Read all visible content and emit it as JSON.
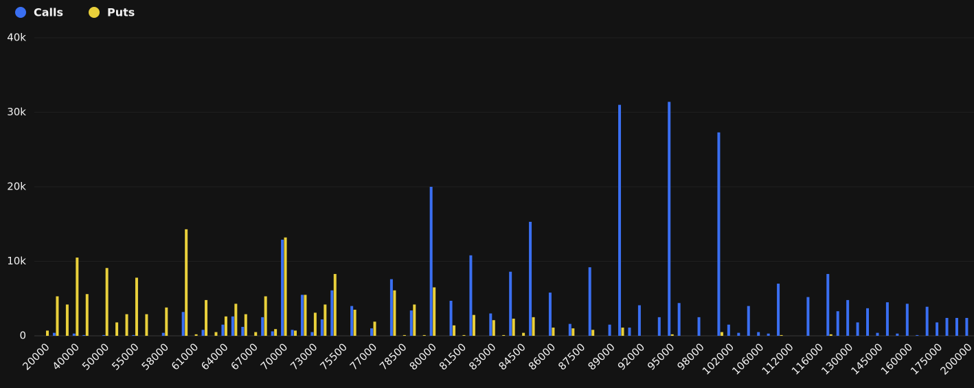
{
  "chart_data": {
    "type": "bar",
    "categories": [
      "20000",
      null,
      null,
      "40000",
      null,
      null,
      "50000",
      null,
      null,
      "55000",
      null,
      null,
      "58000",
      null,
      null,
      "61000",
      null,
      null,
      "64000",
      null,
      null,
      "67000",
      null,
      null,
      "70000",
      null,
      null,
      "73000",
      null,
      null,
      "75500",
      null,
      null,
      "77000",
      null,
      null,
      "78500",
      null,
      null,
      "80000",
      null,
      null,
      "81500",
      null,
      null,
      "83000",
      null,
      null,
      "84500",
      null,
      null,
      "86000",
      null,
      null,
      "87500",
      null,
      null,
      "89000",
      null,
      null,
      "92000",
      null,
      null,
      "95000",
      null,
      null,
      "98000",
      null,
      null,
      "102000",
      null,
      null,
      "106000",
      null,
      null,
      "112000",
      null,
      null,
      "116000",
      null,
      null,
      "130000",
      null,
      null,
      "145000",
      null,
      null,
      "160000",
      null,
      null,
      "175000",
      null,
      null,
      "200000"
    ],
    "series": [
      {
        "name": "Calls",
        "color": "#3a6ff2",
        "values": [
          0,
          400,
          0,
          300,
          100,
          0,
          100,
          0,
          0,
          100,
          0,
          0,
          400,
          0,
          3200,
          0,
          800,
          0,
          1500,
          2600,
          1200,
          0,
          2500,
          600,
          12900,
          800,
          5500,
          500,
          2200,
          6100,
          0,
          4000,
          0,
          1000,
          0,
          7600,
          0,
          3400,
          0,
          20000,
          0,
          4700,
          0,
          10800,
          0,
          3000,
          0,
          8600,
          0,
          15300,
          0,
          5800,
          0,
          1600,
          0,
          9200,
          0,
          1500,
          31000,
          1100,
          4100,
          0,
          2500,
          31400,
          4400,
          0,
          2500,
          0,
          27300,
          1500,
          400,
          4000,
          500,
          300,
          7000,
          0,
          0,
          5200,
          0,
          8300,
          3300,
          4800,
          1800,
          3700,
          400,
          4500,
          300,
          4300,
          100,
          3900,
          1800,
          2400,
          2400,
          2400
        ]
      },
      {
        "name": "Puts",
        "color": "#e9d03b",
        "values": [
          700,
          5300,
          4200,
          10500,
          5600,
          0,
          9100,
          1800,
          2900,
          7800,
          2900,
          0,
          3800,
          0,
          14300,
          200,
          4800,
          500,
          2600,
          4300,
          2900,
          500,
          5300,
          900,
          13200,
          700,
          5500,
          3100,
          4200,
          8300,
          0,
          3500,
          0,
          1900,
          0,
          6100,
          100,
          4200,
          100,
          6500,
          0,
          1400,
          100,
          2800,
          0,
          2100,
          100,
          2300,
          400,
          2500,
          0,
          1100,
          0,
          1000,
          0,
          800,
          0,
          0,
          1100,
          0,
          0,
          0,
          0,
          200,
          0,
          0,
          0,
          0,
          500,
          0,
          0,
          0,
          0,
          0,
          100,
          0,
          0,
          0,
          0,
          200,
          0,
          0,
          0,
          0,
          0,
          0,
          0,
          0,
          0,
          0,
          0,
          0,
          0,
          0
        ]
      }
    ],
    "ylim": [
      0,
      40000
    ],
    "yticks": [
      0,
      {
        "value": 10000,
        "label": "10k"
      },
      {
        "value": 20000,
        "label": "20k"
      },
      {
        "value": 30000,
        "label": "30k"
      },
      {
        "value": 40000,
        "label": "40k"
      }
    ],
    "grid": true,
    "legend": "top-left"
  }
}
